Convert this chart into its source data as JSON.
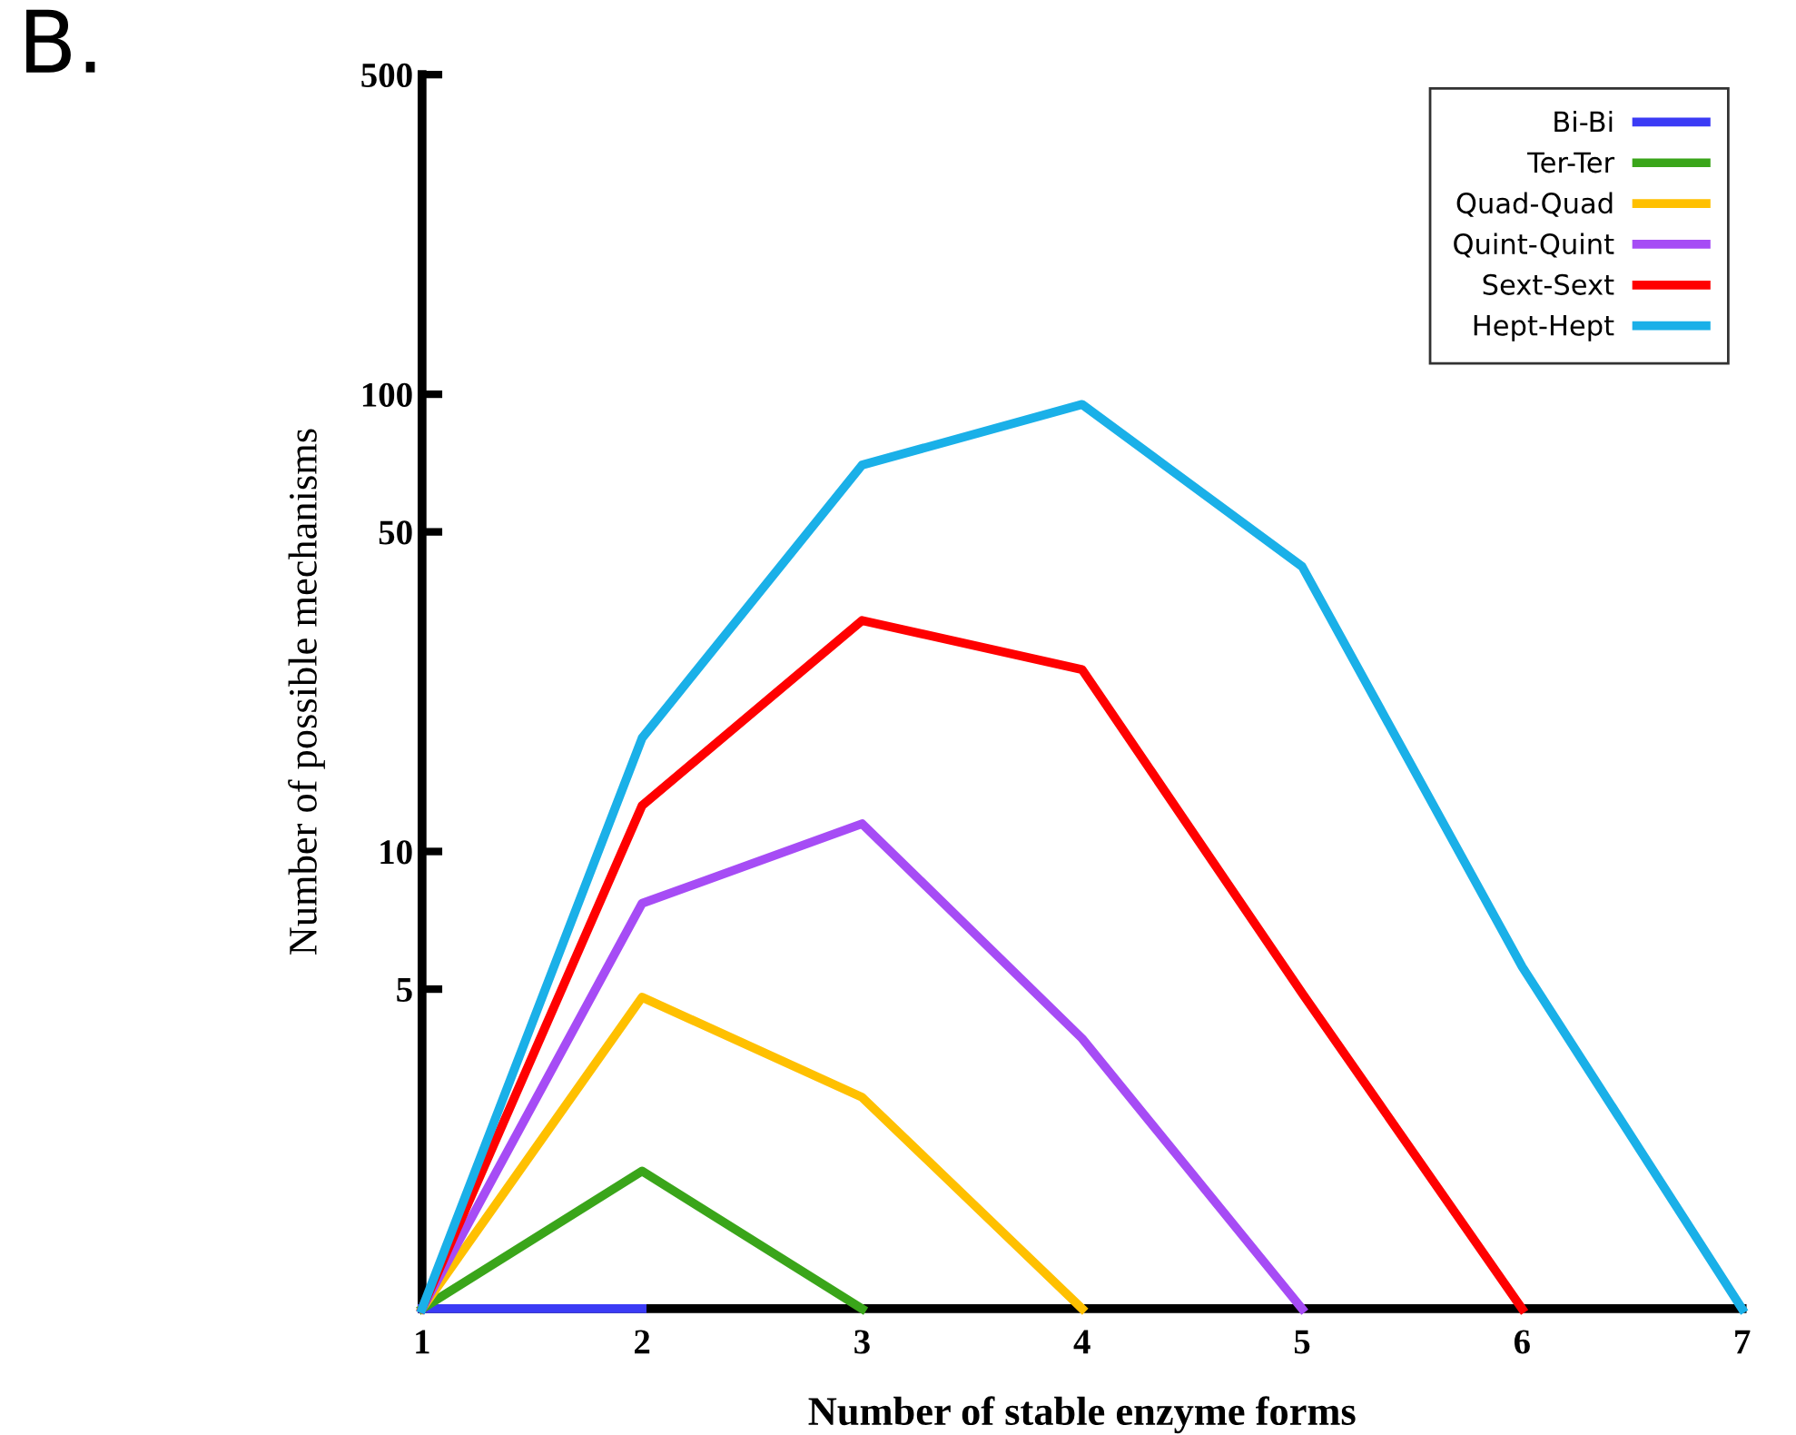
{
  "chart_data": {
    "type": "line",
    "xlabel": "Number of stable enzyme forms",
    "ylabel": "Number of possible mechanisms",
    "annotations": [
      "B."
    ],
    "series": [
      {
        "name": "Bi-Bi",
        "color": "#3b3bf5",
        "x": [
          1,
          2
        ],
        "values": [
          1,
          1
        ]
      },
      {
        "name": "Ter-Ter",
        "color": "#3aa51a",
        "x": [
          1,
          2,
          3
        ],
        "values": [
          1,
          2,
          1
        ]
      },
      {
        "name": "Quad-Quad",
        "color": "#ffc000",
        "x": [
          1,
          2,
          3,
          4
        ],
        "values": [
          1,
          4.8,
          2.9,
          1
        ]
      },
      {
        "name": "Quint-Quint",
        "color": "#a64cf5",
        "x": [
          1,
          2,
          3,
          4,
          5
        ],
        "values": [
          1,
          7.7,
          11.5,
          3.9,
          1
        ]
      },
      {
        "name": "Sext-Sext",
        "color": "#ff0000",
        "x": [
          1,
          2,
          3,
          4,
          5,
          6
        ],
        "values": [
          1,
          12.6,
          32,
          25,
          4.9,
          1
        ]
      },
      {
        "name": "Hept-Hept",
        "color": "#1ab0e8",
        "x": [
          1,
          2,
          3,
          4,
          5,
          6,
          7
        ],
        "values": [
          1,
          17.7,
          70,
          95,
          42,
          5.6,
          1
        ]
      }
    ],
    "log": "y",
    "xlim": [
      1,
      7
    ],
    "xticks": [
      1,
      2,
      3,
      4,
      5,
      6,
      7
    ],
    "ylim": [
      1,
      500
    ],
    "yticks": [
      5,
      10,
      50,
      100,
      500
    ],
    "grid": false,
    "legend": "top right",
    "marker": "none",
    "line_style": "solid"
  }
}
